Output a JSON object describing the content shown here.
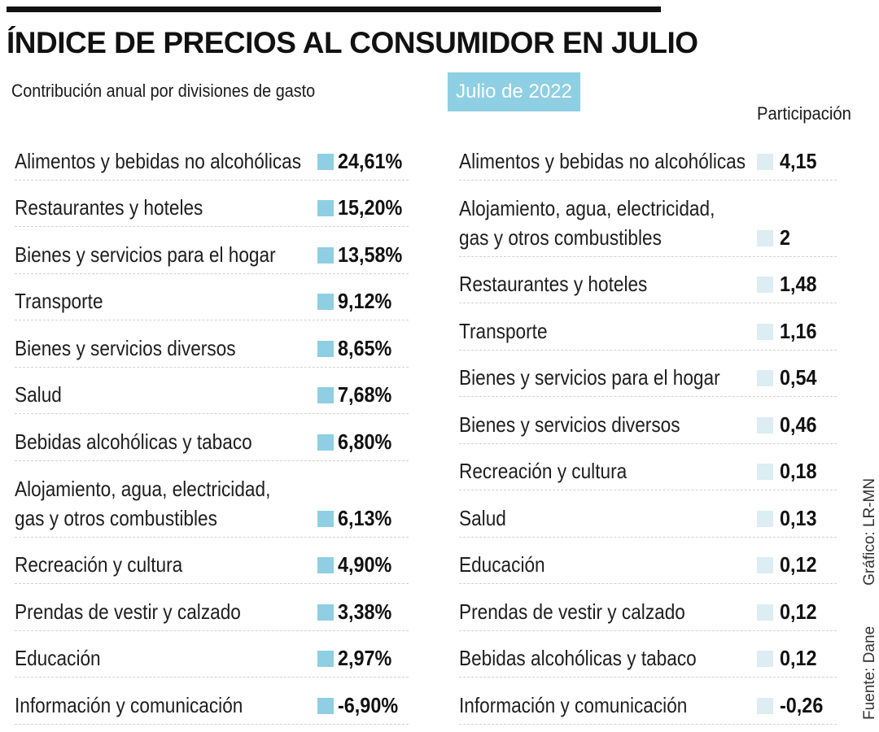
{
  "title": "ÍNDICE DE PRECIOS AL CONSUMIDOR EN JULIO",
  "subtitle": "Contribución anual por divisiones de gasto",
  "date_badge": "Julio de 2022",
  "right_header": "Participación",
  "left_items": [
    {
      "label": "Alimentos y bebidas no alcohólicas",
      "value": "24,61%"
    },
    {
      "label": "Restaurantes y hoteles",
      "value": "15,20%"
    },
    {
      "label": "Bienes y servicios para el hogar",
      "value": "13,58%"
    },
    {
      "label": "Transporte",
      "value": "9,12%"
    },
    {
      "label": "Bienes y servicios diversos",
      "value": "8,65%"
    },
    {
      "label": "Salud",
      "value": "7,68%"
    },
    {
      "label": "Bebidas alcohólicas y tabaco",
      "value": "6,80%"
    },
    {
      "label": "Alojamiento, agua, electricidad, gas y otros combustibles",
      "value": "6,13%"
    },
    {
      "label": "Recreación y cultura",
      "value": "4,90%"
    },
    {
      "label": "Prendas de vestir y calzado",
      "value": "3,38%"
    },
    {
      "label": "Educación",
      "value": "2,97%"
    },
    {
      "label": "Información y comunicación",
      "value": "-6,90%"
    }
  ],
  "right_items": [
    {
      "label": "Alimentos y bebidas no alcohólicas",
      "value": "4,15"
    },
    {
      "label": "Alojamiento, agua, electricidad, gas y otros combustibles",
      "value": "2"
    },
    {
      "label": "Restaurantes y hoteles",
      "value": "1,48"
    },
    {
      "label": "Transporte",
      "value": "1,16"
    },
    {
      "label": "Bienes y servicios para el hogar",
      "value": "0,54"
    },
    {
      "label": "Bienes y servicios diversos",
      "value": "0,46"
    },
    {
      "label": "Recreación y cultura",
      "value": "0,18"
    },
    {
      "label": "Salud",
      "value": "0,13"
    },
    {
      "label": "Educación",
      "value": "0,12"
    },
    {
      "label": "Prendas de vestir y calzado",
      "value": "0,12"
    },
    {
      "label": "Bebidas alcohólicas y tabaco",
      "value": "0,12"
    },
    {
      "label": "Información y comunicación",
      "value": "-0,26"
    }
  ],
  "source": "Fuente: Dane",
  "credit": "Gráfico: LR-MN",
  "colors": {
    "accent": "#8ecfe3",
    "accent_light": "#dcedf3",
    "rule": "#111111"
  }
}
